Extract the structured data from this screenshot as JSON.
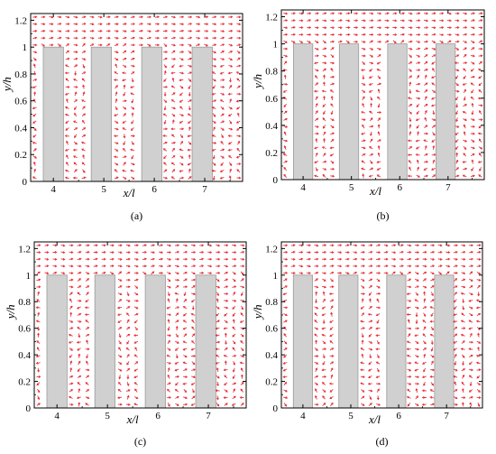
{
  "chart_data": [
    {
      "id": "a",
      "type": "vector-field",
      "caption": "(a)",
      "xlabel": "x/l",
      "ylabel": "y/h",
      "xticks": [
        4,
        5,
        6,
        7
      ],
      "yticks": [
        "0",
        "0.2",
        "0.4",
        "0.6",
        "0.8",
        "1",
        "1.2"
      ],
      "xlim": [
        3.55,
        7.75
      ],
      "ylim": [
        0,
        1.25
      ],
      "buildings": [
        {
          "x_center": 4.0,
          "width": 0.4,
          "height": 1.0
        },
        {
          "x_center": 4.95,
          "width": 0.4,
          "height": 1.0
        },
        {
          "x_center": 5.95,
          "width": 0.4,
          "height": 1.0
        },
        {
          "x_center": 6.95,
          "width": 0.4,
          "height": 1.0
        }
      ],
      "vector_color": "#e8303a",
      "building_color": "#d0d0d0"
    },
    {
      "id": "b",
      "type": "vector-field",
      "caption": "(b)",
      "xlabel": "x/l",
      "ylabel": "y/h",
      "xticks": [
        4,
        5,
        6,
        7
      ],
      "yticks": [
        "0",
        "0.2",
        "0.4",
        "0.6",
        "0.8",
        "1",
        "1.2"
      ],
      "xlim": [
        3.55,
        7.75
      ],
      "ylim": [
        0,
        1.25
      ],
      "buildings": [
        {
          "x_center": 4.0,
          "width": 0.4,
          "height": 1.0
        },
        {
          "x_center": 4.95,
          "width": 0.4,
          "height": 1.0
        },
        {
          "x_center": 5.95,
          "width": 0.4,
          "height": 1.0
        },
        {
          "x_center": 6.95,
          "width": 0.4,
          "height": 1.0
        }
      ],
      "vector_color": "#e8303a",
      "building_color": "#d0d0d0"
    },
    {
      "id": "c",
      "type": "vector-field",
      "caption": "(c)",
      "xlabel": "x/l",
      "ylabel": "y/h",
      "xticks": [
        4,
        5,
        6,
        7
      ],
      "yticks": [
        "0",
        "0.2",
        "0.4",
        "0.6",
        "0.8",
        "1",
        "1.2"
      ],
      "xlim": [
        3.55,
        7.75
      ],
      "ylim": [
        0,
        1.25
      ],
      "buildings": [
        {
          "x_center": 4.0,
          "width": 0.4,
          "height": 1.0
        },
        {
          "x_center": 4.95,
          "width": 0.4,
          "height": 1.0
        },
        {
          "x_center": 5.95,
          "width": 0.4,
          "height": 1.0
        },
        {
          "x_center": 6.95,
          "width": 0.4,
          "height": 1.0
        }
      ],
      "vector_color": "#e8303a",
      "building_color": "#d0d0d0"
    },
    {
      "id": "d",
      "type": "vector-field",
      "caption": "(d)",
      "xlabel": "x/l",
      "ylabel": "y/h",
      "xticks": [
        4,
        5,
        6,
        7
      ],
      "yticks": [
        "0",
        "0.2",
        "0.4",
        "0.6",
        "0.8",
        "1",
        "1.2"
      ],
      "xlim": [
        3.55,
        7.75
      ],
      "ylim": [
        0,
        1.25
      ],
      "buildings": [
        {
          "x_center": 4.0,
          "width": 0.4,
          "height": 1.0
        },
        {
          "x_center": 4.95,
          "width": 0.4,
          "height": 1.0
        },
        {
          "x_center": 5.95,
          "width": 0.4,
          "height": 1.0
        },
        {
          "x_center": 6.95,
          "width": 0.4,
          "height": 1.0
        }
      ],
      "vector_color": "#e8303a",
      "building_color": "#d0d0d0"
    }
  ]
}
